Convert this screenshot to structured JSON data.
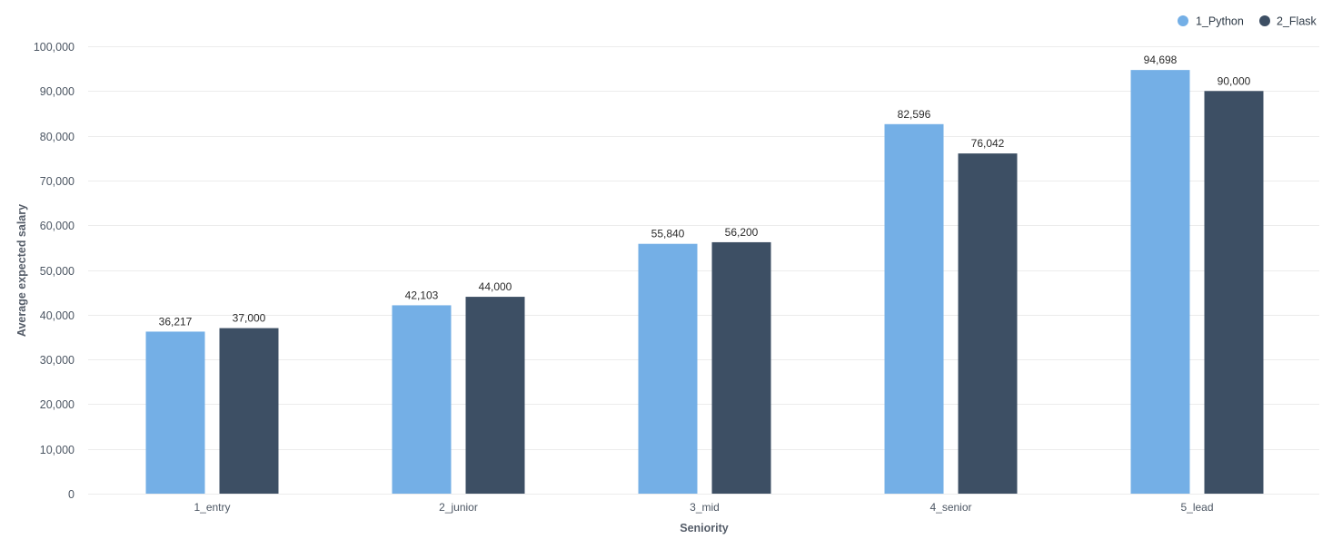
{
  "chart_data": {
    "type": "bar",
    "title": "",
    "xlabel": "Seniority",
    "ylabel": "Average expected salary",
    "categories": [
      "1_entry",
      "2_junior",
      "3_mid",
      "4_senior",
      "5_lead"
    ],
    "series": [
      {
        "name": "1_Python",
        "color": "#74afe6",
        "values": [
          36217,
          42103,
          55840,
          82596,
          94698
        ]
      },
      {
        "name": "2_Flask",
        "color": "#3d4f64",
        "values": [
          37000,
          44000,
          56200,
          76042,
          90000
        ]
      }
    ],
    "data_labels": [
      [
        "36,217",
        "42,103",
        "55,840",
        "82,596",
        "94,698"
      ],
      [
        "37,000",
        "44,000",
        "56,200",
        "76,042",
        "90,000"
      ]
    ],
    "yticks": [
      0,
      10000,
      20000,
      30000,
      40000,
      50000,
      60000,
      70000,
      80000,
      90000,
      100000
    ],
    "ytick_labels": [
      "0",
      "10,000",
      "20,000",
      "30,000",
      "40,000",
      "50,000",
      "60,000",
      "70,000",
      "80,000",
      "90,000",
      "100,000"
    ],
    "ylim": [
      0,
      100000
    ],
    "grid": true,
    "legend_position": "top-right"
  }
}
